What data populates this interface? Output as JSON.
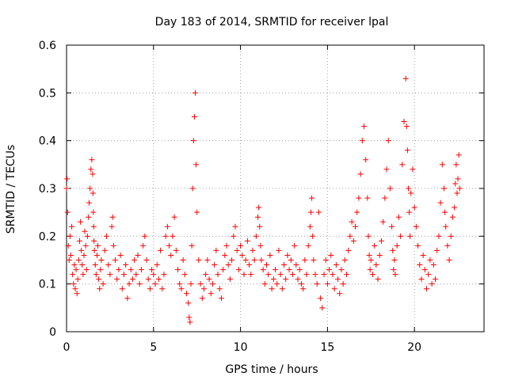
{
  "chart_data": {
    "type": "scatter",
    "title": "Day 183 of 2014, SRMTID for receiver lpal",
    "xlabel": "GPS time / hours",
    "ylabel": "SRMTID / TECUs",
    "xlim": [
      0,
      24
    ],
    "ylim": [
      0,
      0.6
    ],
    "xticks": [
      0,
      5,
      10,
      15,
      20
    ],
    "yticks": [
      0,
      0.1,
      0.2,
      0.3,
      0.4,
      0.5,
      0.6
    ],
    "xtick_labels": [
      "0",
      "5",
      "10",
      "15",
      "20"
    ],
    "ytick_labels": [
      "0",
      "0.1",
      "0.2",
      "0.3",
      "0.4",
      "0.5",
      "0.6"
    ],
    "grid": true,
    "marker": "+",
    "series": [
      {
        "name": "SRMTID",
        "color": "#ff0000",
        "x": [
          0.0,
          0.03,
          0.06,
          0.1,
          0.15,
          0.2,
          0.25,
          0.3,
          0.35,
          0.4,
          0.45,
          0.5,
          0.55,
          0.6,
          0.65,
          0.7,
          0.75,
          0.8,
          0.85,
          0.9,
          0.95,
          1.0,
          1.05,
          1.1,
          1.15,
          1.2,
          1.25,
          1.3,
          1.35,
          1.4,
          1.45,
          1.5,
          1.52,
          1.54,
          1.56,
          1.58,
          1.6,
          1.65,
          1.7,
          1.75,
          1.8,
          1.85,
          1.9,
          1.95,
          2.0,
          2.1,
          2.2,
          2.3,
          2.4,
          2.5,
          2.6,
          2.65,
          2.7,
          2.8,
          2.9,
          3.0,
          3.1,
          3.2,
          3.3,
          3.4,
          3.5,
          3.6,
          3.7,
          3.8,
          3.9,
          4.0,
          4.1,
          4.2,
          4.3,
          4.4,
          4.5,
          4.6,
          4.7,
          4.8,
          4.9,
          5.0,
          5.1,
          5.2,
          5.3,
          5.4,
          5.5,
          5.6,
          5.7,
          5.8,
          5.9,
          6.0,
          6.1,
          6.2,
          6.3,
          6.4,
          6.5,
          6.6,
          6.7,
          6.8,
          6.9,
          7.0,
          7.05,
          7.1,
          7.15,
          7.2,
          7.25,
          7.3,
          7.35,
          7.4,
          7.45,
          7.5,
          7.6,
          7.7,
          7.8,
          7.9,
          8.0,
          8.1,
          8.2,
          8.3,
          8.4,
          8.5,
          8.6,
          8.7,
          8.8,
          8.9,
          9.0,
          9.1,
          9.2,
          9.3,
          9.4,
          9.5,
          9.6,
          9.7,
          9.8,
          9.9,
          10.0,
          10.1,
          10.2,
          10.3,
          10.4,
          10.5,
          10.6,
          10.7,
          10.8,
          10.9,
          11.0,
          11.05,
          11.1,
          11.15,
          11.2,
          11.3,
          11.4,
          11.5,
          11.6,
          11.7,
          11.8,
          11.9,
          12.0,
          12.1,
          12.2,
          12.3,
          12.4,
          12.5,
          12.6,
          12.7,
          12.8,
          12.9,
          13.0,
          13.1,
          13.2,
          13.3,
          13.4,
          13.5,
          13.6,
          13.7,
          13.8,
          13.9,
          14.0,
          14.05,
          14.1,
          14.15,
          14.2,
          14.3,
          14.4,
          14.5,
          14.6,
          14.7,
          14.8,
          14.9,
          15.0,
          15.1,
          15.2,
          15.3,
          15.4,
          15.5,
          15.6,
          15.7,
          15.8,
          15.9,
          16.0,
          16.1,
          16.2,
          16.3,
          16.4,
          16.5,
          16.6,
          16.7,
          16.8,
          16.9,
          17.0,
          17.1,
          17.2,
          17.3,
          17.35,
          17.4,
          17.45,
          17.5,
          17.6,
          17.7,
          17.8,
          17.9,
          18.0,
          18.1,
          18.2,
          18.3,
          18.4,
          18.5,
          18.6,
          18.7,
          18.75,
          18.8,
          18.85,
          18.9,
          19.0,
          19.1,
          19.2,
          19.3,
          19.4,
          19.5,
          19.55,
          19.6,
          19.65,
          19.7,
          19.75,
          19.8,
          19.9,
          20.0,
          20.1,
          20.2,
          20.3,
          20.4,
          20.5,
          20.6,
          20.7,
          20.8,
          20.9,
          21.0,
          21.1,
          21.2,
          21.3,
          21.4,
          21.5,
          21.6,
          21.7,
          21.75,
          21.8,
          21.9,
          22.0,
          22.1,
          22.2,
          22.3,
          22.35,
          22.4,
          22.45,
          22.5,
          22.55,
          22.6
        ],
        "y": [
          0.3,
          0.32,
          0.25,
          0.18,
          0.15,
          0.2,
          0.16,
          0.22,
          0.12,
          0.1,
          0.14,
          0.09,
          0.13,
          0.08,
          0.11,
          0.15,
          0.19,
          0.23,
          0.17,
          0.14,
          0.12,
          0.16,
          0.21,
          0.18,
          0.13,
          0.2,
          0.24,
          0.27,
          0.3,
          0.34,
          0.36,
          0.33,
          0.29,
          0.25,
          0.22,
          0.19,
          0.17,
          0.14,
          0.12,
          0.16,
          0.18,
          0.11,
          0.09,
          0.13,
          0.15,
          0.1,
          0.17,
          0.2,
          0.14,
          0.12,
          0.22,
          0.24,
          0.18,
          0.15,
          0.11,
          0.13,
          0.16,
          0.09,
          0.12,
          0.14,
          0.07,
          0.1,
          0.13,
          0.11,
          0.15,
          0.12,
          0.16,
          0.1,
          0.13,
          0.18,
          0.2,
          0.15,
          0.11,
          0.09,
          0.13,
          0.12,
          0.1,
          0.14,
          0.11,
          0.17,
          0.09,
          0.12,
          0.2,
          0.22,
          0.18,
          0.16,
          0.2,
          0.24,
          0.17,
          0.13,
          0.1,
          0.09,
          0.15,
          0.12,
          0.08,
          0.06,
          0.03,
          0.02,
          0.1,
          0.18,
          0.3,
          0.4,
          0.45,
          0.5,
          0.35,
          0.25,
          0.15,
          0.1,
          0.07,
          0.09,
          0.12,
          0.15,
          0.11,
          0.08,
          0.1,
          0.14,
          0.17,
          0.12,
          0.09,
          0.07,
          0.13,
          0.16,
          0.18,
          0.14,
          0.11,
          0.15,
          0.2,
          0.22,
          0.17,
          0.13,
          0.18,
          0.16,
          0.12,
          0.15,
          0.19,
          0.14,
          0.12,
          0.17,
          0.15,
          0.2,
          0.24,
          0.26,
          0.22,
          0.18,
          0.15,
          0.13,
          0.1,
          0.14,
          0.12,
          0.16,
          0.09,
          0.11,
          0.13,
          0.1,
          0.17,
          0.12,
          0.09,
          0.14,
          0.11,
          0.16,
          0.13,
          0.15,
          0.12,
          0.18,
          0.14,
          0.11,
          0.13,
          0.1,
          0.09,
          0.15,
          0.12,
          0.18,
          0.22,
          0.25,
          0.28,
          0.2,
          0.15,
          0.12,
          0.1,
          0.25,
          0.07,
          0.05,
          0.12,
          0.15,
          0.1,
          0.13,
          0.16,
          0.12,
          0.09,
          0.14,
          0.11,
          0.08,
          0.13,
          0.1,
          0.15,
          0.12,
          0.17,
          0.2,
          0.23,
          0.19,
          0.22,
          0.25,
          0.28,
          0.33,
          0.4,
          0.43,
          0.36,
          0.28,
          0.2,
          0.16,
          0.13,
          0.15,
          0.12,
          0.18,
          0.14,
          0.11,
          0.16,
          0.19,
          0.23,
          0.28,
          0.34,
          0.4,
          0.3,
          0.22,
          0.17,
          0.13,
          0.15,
          0.12,
          0.18,
          0.24,
          0.2,
          0.35,
          0.44,
          0.53,
          0.43,
          0.38,
          0.3,
          0.25,
          0.2,
          0.29,
          0.34,
          0.26,
          0.22,
          0.18,
          0.14,
          0.11,
          0.16,
          0.13,
          0.09,
          0.12,
          0.15,
          0.1,
          0.14,
          0.11,
          0.17,
          0.2,
          0.27,
          0.35,
          0.3,
          0.25,
          0.22,
          0.18,
          0.15,
          0.2,
          0.24,
          0.26,
          0.31,
          0.35,
          0.29,
          0.32,
          0.37,
          0.3
        ]
      }
    ]
  }
}
